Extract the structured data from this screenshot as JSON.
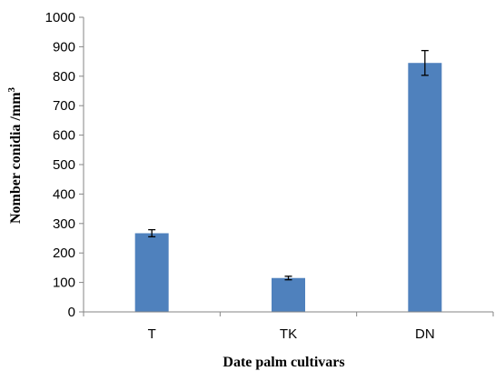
{
  "chart_data": {
    "type": "bar",
    "categories": [
      "T",
      "TK",
      "DN"
    ],
    "values": [
      267,
      115,
      845
    ],
    "error": [
      12,
      6,
      42
    ],
    "xlabel": "Date palm cultivars",
    "ylabel_main": "Nomber conidia /mm",
    "ylabel_sup": "3",
    "ylim": [
      0,
      1000
    ],
    "yticks": [
      0,
      100,
      200,
      300,
      400,
      500,
      600,
      700,
      800,
      900,
      1000
    ],
    "bar_color": "#4F81BD",
    "grid": false,
    "legend": "none"
  }
}
